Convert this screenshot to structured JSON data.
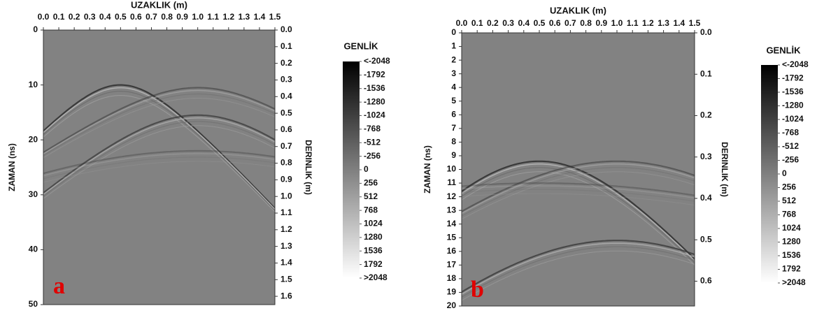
{
  "chart_data": [
    {
      "type": "radargram",
      "label": "a",
      "xlabel": "UZAKLIK (m)",
      "ylabel": "ZAMAN (ns)",
      "y2label": "DERINLIK (m)",
      "xlim": [
        0,
        1.5
      ],
      "xticks": [
        {
          "value": 0,
          "label": "0.0"
        },
        0.1,
        0.2,
        0.3,
        0.4,
        0.5,
        0.6,
        0.7,
        0.8,
        0.9,
        {
          "value": 1,
          "label": "1.0"
        },
        1.1,
        1.2,
        1.3,
        1.4,
        1.5
      ],
      "ylim": [
        0,
        50
      ],
      "yticks": [
        0,
        10,
        20,
        30,
        40,
        50
      ],
      "y2lim": [
        0,
        1.65
      ],
      "y2ticks": [
        {
          "value": 0,
          "label": "0.0"
        },
        0.1,
        0.2,
        0.3,
        0.4,
        0.5,
        0.6,
        0.7,
        0.8,
        0.9,
        {
          "value": 1,
          "label": "1.0"
        },
        1.1,
        1.2,
        1.3,
        1.4,
        1.5,
        1.6
      ],
      "colorbar": {
        "title": "GENLİK",
        "colors": [
          "#000000",
          "#ffffff"
        ],
        "lim": [
          -2048,
          2048
        ],
        "ticks": [
          {
            "value": -2048,
            "label": "<-2048"
          },
          -1792,
          -1536,
          -1280,
          -1024,
          -768,
          -512,
          -256,
          0,
          256,
          512,
          768,
          1024,
          1280,
          1536,
          1792,
          {
            "value": 2048,
            "label": ">2048"
          }
        ]
      }
    },
    {
      "type": "radargram",
      "label": "b",
      "xlabel": "UZAKLIK (m)",
      "ylabel": "ZAMAN (ns)",
      "y2label": "DERINLIK (m)",
      "xlim": [
        0,
        1.5
      ],
      "xticks": [
        {
          "value": 0,
          "label": "0.0"
        },
        0.1,
        0.2,
        0.3,
        0.4,
        0.5,
        0.6,
        0.7,
        0.8,
        0.9,
        {
          "value": 1,
          "label": "1.0"
        },
        1.1,
        1.2,
        1.3,
        1.4,
        1.5
      ],
      "ylim": [
        0,
        20
      ],
      "yticks": [
        0,
        1,
        2,
        3,
        4,
        5,
        6,
        7,
        8,
        9,
        10,
        11,
        12,
        13,
        14,
        15,
        16,
        17,
        18,
        19,
        20
      ],
      "y2lim": [
        0,
        0.66
      ],
      "y2ticks": [
        {
          "value": 0,
          "label": "0.0"
        },
        0.1,
        0.2,
        0.3,
        0.4,
        0.5,
        0.6
      ],
      "colorbar": {
        "title": "GENLİK",
        "colors": [
          "#000000",
          "#ffffff"
        ],
        "lim": [
          -2048,
          2048
        ],
        "ticks": [
          {
            "value": -2048,
            "label": "<-2048"
          },
          -1792,
          -1536,
          -1280,
          -1024,
          -768,
          -512,
          -256,
          0,
          256,
          512,
          768,
          1024,
          1280,
          1536,
          1792,
          {
            "value": 2048,
            "label": ">2048"
          }
        ]
      }
    }
  ]
}
